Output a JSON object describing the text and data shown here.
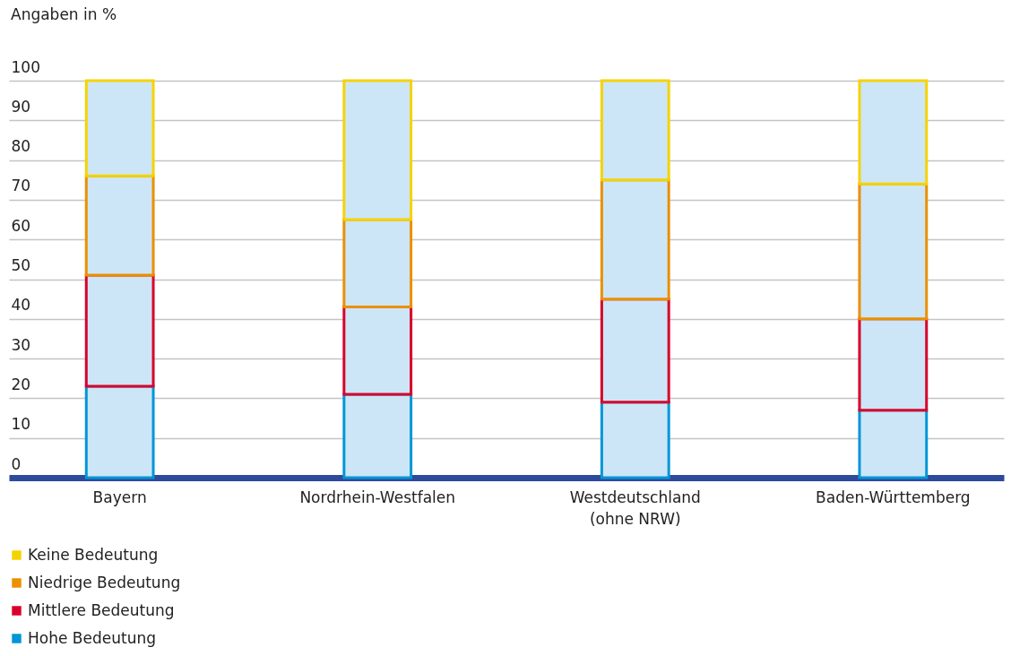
{
  "chart_data": {
    "type": "bar",
    "stacked": true,
    "ylabel": "Angaben in %",
    "categories": [
      "Bayern",
      "Nordrhein-Westfalen",
      "Westdeutschland\n(ohne NRW)",
      "Baden-Württemberg"
    ],
    "series": [
      {
        "name": "Hohe Bedeutung",
        "color": "#0096d8",
        "values": [
          23,
          21,
          19,
          17
        ]
      },
      {
        "name": "Mittlere Bedeutung",
        "color": "#d9002a",
        "values": [
          28,
          22,
          26,
          23
        ]
      },
      {
        "name": "Niedrige Bedeutung",
        "color": "#ec8f00",
        "values": [
          25,
          22,
          30,
          34
        ]
      },
      {
        "name": "Keine Bedeutung",
        "color": "#f5d300",
        "values": [
          24,
          35,
          25,
          26
        ]
      }
    ],
    "ylim": [
      0,
      100
    ],
    "yticks": [
      0,
      10,
      20,
      30,
      40,
      50,
      60,
      70,
      80,
      90,
      100
    ],
    "grid": "y",
    "legend": "bottom"
  }
}
